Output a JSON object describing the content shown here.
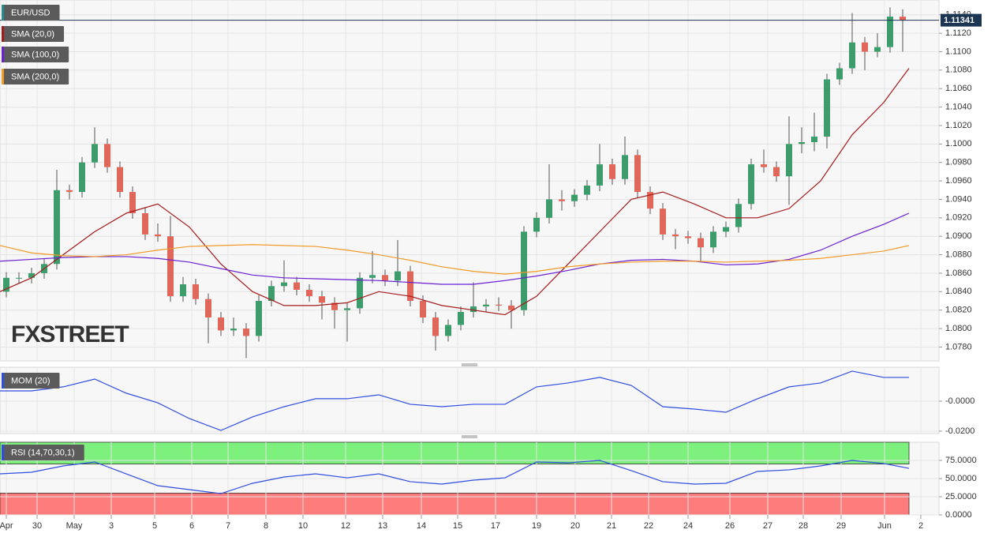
{
  "chart_data": [
    {
      "type": "candlestick",
      "name": "EUR/USD",
      "watermark": "FXSTREET",
      "up_color": "#3d9c6c",
      "down_color": "#e0675a",
      "name_color": "#2a8a8a",
      "xlim": [
        0,
        119
      ],
      "xticks": [
        {
          "value": 0.8,
          "label": "Apr"
        },
        {
          "value": 4.7,
          "label": "30"
        },
        {
          "value": 9.4,
          "label": "May"
        },
        {
          "value": 14.1,
          "label": "3"
        },
        {
          "value": 19.6,
          "label": "5"
        },
        {
          "value": 24.3,
          "label": "6"
        },
        {
          "value": 28.9,
          "label": "7"
        },
        {
          "value": 33.7,
          "label": "8"
        },
        {
          "value": 38.4,
          "label": "10"
        },
        {
          "value": 43.8,
          "label": "12"
        },
        {
          "value": 48.5,
          "label": "13"
        },
        {
          "value": 53.4,
          "label": "14"
        },
        {
          "value": 58.0,
          "label": "15"
        },
        {
          "value": 62.8,
          "label": "17"
        },
        {
          "value": 68.0,
          "label": "19"
        },
        {
          "value": 72.9,
          "label": "20"
        },
        {
          "value": 77.5,
          "label": "21"
        },
        {
          "value": 82.2,
          "label": "22"
        },
        {
          "value": 87.2,
          "label": "24"
        },
        {
          "value": 92.5,
          "label": "26"
        },
        {
          "value": 97.3,
          "label": "27"
        },
        {
          "value": 101.8,
          "label": "28"
        },
        {
          "value": 106.6,
          "label": "29"
        },
        {
          "value": 112.1,
          "label": "Jun"
        },
        {
          "value": 116.7,
          "label": "2"
        }
      ],
      "ylim": [
        1.0765,
        1.1156
      ],
      "yticks": [
        {
          "value": 1.078,
          "label": "1.0780"
        },
        {
          "value": 1.08,
          "label": "1.0800"
        },
        {
          "value": 1.082,
          "label": "1.0820"
        },
        {
          "value": 1.084,
          "label": "1.0840"
        },
        {
          "value": 1.086,
          "label": "1.0860"
        },
        {
          "value": 1.088,
          "label": "1.0880"
        },
        {
          "value": 1.09,
          "label": "1.0900"
        },
        {
          "value": 1.092,
          "label": "1.0920"
        },
        {
          "value": 1.094,
          "label": "1.0940"
        },
        {
          "value": 1.096,
          "label": "1.0960"
        },
        {
          "value": 1.098,
          "label": "1.0980"
        },
        {
          "value": 1.1,
          "label": "1.1000"
        },
        {
          "value": 1.102,
          "label": "1.1020"
        },
        {
          "value": 1.104,
          "label": "1.1040"
        },
        {
          "value": 1.106,
          "label": "1.1060"
        },
        {
          "value": 1.108,
          "label": "1.1080"
        },
        {
          "value": 1.11,
          "label": "1.1100"
        },
        {
          "value": 1.112,
          "label": "1.1120"
        },
        {
          "value": 1.114,
          "label": "1.1140"
        }
      ],
      "last_price": 1.11341,
      "x": [
        0.8,
        2.4,
        4.0,
        5.6,
        7.2,
        8.8,
        10.4,
        12.0,
        13.6,
        15.2,
        16.8,
        18.4,
        20.0,
        21.6,
        23.2,
        24.8,
        26.4,
        28.0,
        29.6,
        31.2,
        32.8,
        34.4,
        36.0,
        37.6,
        39.2,
        40.8,
        42.4,
        44.0,
        45.6,
        47.2,
        48.8,
        50.4,
        52.0,
        53.6,
        55.2,
        56.8,
        58.4,
        60.0,
        61.6,
        63.2,
        64.8,
        66.4,
        68.0,
        69.6,
        71.2,
        72.8,
        74.4,
        76.0,
        77.6,
        79.2,
        80.8,
        82.4,
        84.0,
        85.6,
        87.2,
        88.8,
        90.4,
        92.0,
        93.6,
        95.2,
        96.8,
        98.4,
        100.0,
        101.6,
        103.2,
        104.8,
        106.4,
        108.0,
        109.6,
        111.2,
        112.8,
        114.4
      ],
      "open": [
        1.084,
        1.0855,
        1.0855,
        1.086,
        1.087,
        1.095,
        1.0948,
        1.098,
        1.1,
        1.0975,
        1.0948,
        1.0925,
        1.0902,
        1.09,
        1.0835,
        1.0848,
        1.0832,
        1.0812,
        1.0798,
        1.08,
        1.0792,
        1.083,
        1.0846,
        1.085,
        1.0842,
        1.0835,
        1.0828,
        1.082,
        1.0822,
        1.0855,
        1.0858,
        1.0852,
        1.0862,
        1.083,
        1.0812,
        1.0792,
        1.0804,
        1.0818,
        1.0824,
        1.0826,
        1.0825,
        1.082,
        1.0905,
        1.092,
        1.094,
        1.0938,
        1.0945,
        1.0955,
        1.0978,
        1.0962,
        1.0988,
        1.0948,
        1.093,
        1.0902,
        1.09,
        1.0898,
        1.0888,
        1.0905,
        1.091,
        1.0935,
        1.0978,
        1.0975,
        1.0965,
        1.1,
        1.1002,
        1.1008,
        1.107,
        1.1082,
        1.111,
        1.11,
        1.1105,
        1.1138
      ],
      "high": [
        1.0861,
        1.0861,
        1.0866,
        1.0876,
        1.0972,
        1.0956,
        1.0986,
        1.1018,
        1.1006,
        1.0981,
        1.0954,
        1.0931,
        1.0914,
        1.0922,
        1.0856,
        1.0854,
        1.0838,
        1.0818,
        1.0812,
        1.0806,
        1.0836,
        1.0852,
        1.0874,
        1.0856,
        1.0848,
        1.0841,
        1.0834,
        1.0828,
        1.0861,
        1.0884,
        1.0864,
        1.0896,
        1.0868,
        1.0836,
        1.0818,
        1.081,
        1.0824,
        1.085,
        1.0832,
        1.0834,
        1.0831,
        1.0911,
        1.0926,
        1.0978,
        1.095,
        1.0951,
        1.0961,
        1.1,
        1.0984,
        1.1008,
        1.0994,
        1.0954,
        1.0936,
        1.0908,
        1.0906,
        1.0904,
        1.0911,
        1.0916,
        1.0941,
        1.0984,
        1.0994,
        1.0981,
        1.103,
        1.1018,
        1.1034,
        1.1076,
        1.1088,
        1.1142,
        1.1116,
        1.112,
        1.1148,
        1.1146
      ],
      "low": [
        1.0834,
        1.0849,
        1.0849,
        1.0854,
        1.0864,
        1.094,
        1.0942,
        1.0974,
        1.0969,
        1.0942,
        1.0919,
        1.0896,
        1.0894,
        1.0829,
        1.0829,
        1.0826,
        1.0784,
        1.0792,
        1.0792,
        1.0768,
        1.0786,
        1.0824,
        1.084,
        1.0836,
        1.0829,
        1.081,
        1.08,
        1.0786,
        1.0816,
        1.0849,
        1.0846,
        1.0846,
        1.0824,
        1.0806,
        1.0776,
        1.0786,
        1.0798,
        1.0812,
        1.0818,
        1.0819,
        1.08,
        1.0814,
        1.0899,
        1.0914,
        1.0928,
        1.0932,
        1.0939,
        1.0949,
        1.0956,
        1.0956,
        1.0942,
        1.0924,
        1.0896,
        1.0886,
        1.0892,
        1.0872,
        1.0882,
        1.0899,
        1.0904,
        1.0929,
        1.0969,
        1.0959,
        1.0934,
        1.099,
        1.0992,
        1.0995,
        1.1064,
        1.1076,
        1.108,
        1.1094,
        1.1099,
        1.11
      ],
      "close": [
        1.0855,
        1.0855,
        1.086,
        1.087,
        1.095,
        1.0948,
        1.098,
        1.1,
        1.0975,
        1.0948,
        1.0925,
        1.0902,
        1.09,
        1.0835,
        1.0848,
        1.0832,
        1.0812,
        1.0798,
        1.08,
        1.0792,
        1.083,
        1.0846,
        1.085,
        1.0842,
        1.0835,
        1.0828,
        1.082,
        1.0822,
        1.0855,
        1.0858,
        1.0852,
        1.0862,
        1.083,
        1.0812,
        1.0792,
        1.0804,
        1.0818,
        1.0824,
        1.0826,
        1.0825,
        1.082,
        1.0905,
        1.092,
        1.094,
        1.0938,
        1.0945,
        1.0955,
        1.0978,
        1.0962,
        1.0988,
        1.0948,
        1.093,
        1.0902,
        1.09,
        1.0898,
        1.0888,
        1.0905,
        1.091,
        1.0935,
        1.0978,
        1.0975,
        1.0965,
        1.1,
        1.1002,
        1.1008,
        1.107,
        1.1082,
        1.111,
        1.11,
        1.1105,
        1.1138,
        1.1134
      ],
      "series": [
        {
          "name": "SMA (20,0)",
          "color": "#a31a1a",
          "x": [
            0,
            4,
            8,
            12,
            16,
            20,
            24,
            28,
            32,
            36,
            40,
            44,
            48,
            52,
            56,
            60,
            64,
            68,
            72,
            76,
            80,
            84,
            88,
            92,
            96,
            100,
            104,
            108,
            112,
            115.2
          ],
          "values": [
            1.084,
            1.0855,
            1.088,
            1.0905,
            1.0925,
            1.0935,
            1.091,
            1.087,
            1.084,
            1.0825,
            1.0825,
            1.0828,
            1.084,
            1.0835,
            1.0825,
            1.082,
            1.0815,
            1.0835,
            1.087,
            1.0905,
            1.094,
            1.0948,
            1.0935,
            1.092,
            1.092,
            1.093,
            1.096,
            1.101,
            1.1045,
            1.1082
          ]
        },
        {
          "name": "SMA (100,0)",
          "color": "#6a1fd1",
          "x": [
            0,
            4,
            8,
            12,
            16,
            20,
            24,
            28,
            32,
            36,
            40,
            44,
            48,
            52,
            56,
            60,
            64,
            68,
            72,
            76,
            80,
            84,
            88,
            92,
            96,
            100,
            104,
            108,
            112,
            115.2
          ],
          "values": [
            1.0873,
            1.0875,
            1.0877,
            1.0878,
            1.0878,
            1.0876,
            1.0872,
            1.0865,
            1.0858,
            1.0855,
            1.0854,
            1.0853,
            1.0852,
            1.085,
            1.0848,
            1.0848,
            1.0852,
            1.0857,
            1.0863,
            1.087,
            1.0874,
            1.0875,
            1.0873,
            1.0869,
            1.087,
            1.0875,
            1.0885,
            1.09,
            1.0913,
            1.0925
          ]
        },
        {
          "name": "SMA (200,0)",
          "color": "#f29a28",
          "x": [
            0,
            4,
            8,
            12,
            16,
            20,
            24,
            28,
            32,
            36,
            40,
            44,
            48,
            52,
            56,
            60,
            64,
            68,
            72,
            76,
            80,
            84,
            88,
            92,
            96,
            100,
            104,
            108,
            112,
            115.2
          ],
          "values": [
            1.089,
            1.0882,
            1.0879,
            1.0878,
            1.088,
            1.0885,
            1.0889,
            1.089,
            1.0891,
            1.089,
            1.0889,
            1.0885,
            1.088,
            1.0874,
            1.0867,
            1.0862,
            1.0859,
            1.0862,
            1.0867,
            1.087,
            1.0872,
            1.0873,
            1.0873,
            1.0872,
            1.0873,
            1.0874,
            1.0876,
            1.088,
            1.0884,
            1.089
          ]
        }
      ]
    },
    {
      "type": "line",
      "ylim": [
        -0.0216,
        0.0226
      ],
      "yticks": [
        {
          "value": 0,
          "label": "-0.0000"
        },
        {
          "value": -0.02,
          "label": "-0.0200"
        }
      ],
      "series": [
        {
          "name": "MOM (20)",
          "color": "#2f4de0",
          "x": [
            0,
            4,
            8,
            12,
            16,
            20,
            24,
            28,
            32,
            36,
            40,
            44,
            48,
            52,
            56,
            60,
            64,
            68,
            72,
            76,
            80,
            84,
            88,
            92,
            96,
            100,
            104,
            108,
            112,
            115.2
          ],
          "values": [
            0.0068,
            0.0068,
            0.0095,
            0.0147,
            0.0053,
            -0.0011,
            -0.0116,
            -0.0195,
            -0.0105,
            -0.0037,
            0.0016,
            0.0016,
            0.0042,
            -0.0021,
            -0.0037,
            -0.0021,
            -0.0021,
            0.0095,
            0.0121,
            0.0158,
            0.0105,
            -0.0037,
            -0.0053,
            -0.0074,
            0.0016,
            0.0095,
            0.0121,
            0.02,
            0.0158,
            0.0158
          ]
        }
      ]
    },
    {
      "type": "line",
      "ylim": [
        0,
        100
      ],
      "yticks": [
        {
          "value": 75,
          "label": "75.0000"
        },
        {
          "value": 50,
          "label": "50.0000"
        },
        {
          "value": 25,
          "label": "25.0000"
        },
        {
          "value": 0,
          "label": "0.0000"
        }
      ],
      "bands": [
        {
          "from": 70,
          "to": 100,
          "color": "#7ef07e"
        },
        {
          "from": 0,
          "to": 30,
          "color": "#ff7c7c"
        }
      ],
      "series": [
        {
          "name": "RSI (14,70,30,1)",
          "color": "#2f4de0",
          "x": [
            0,
            4,
            8,
            12,
            16,
            20,
            24,
            28,
            32,
            36,
            40,
            44,
            48,
            52,
            56,
            60,
            64,
            68,
            72,
            76,
            80,
            84,
            88,
            92,
            96,
            100,
            104,
            108,
            112,
            115.2
          ],
          "values": [
            56.5,
            58.7,
            67.4,
            72.8,
            56.5,
            40.2,
            34.8,
            29.3,
            43.5,
            52.2,
            56.5,
            51,
            56.5,
            45.7,
            42.4,
            47.8,
            51,
            72.8,
            71.7,
            75,
            60.9,
            45.7,
            42.4,
            43.5,
            59.8,
            62,
            67.4,
            75,
            70.7,
            64.1
          ]
        }
      ]
    }
  ]
}
